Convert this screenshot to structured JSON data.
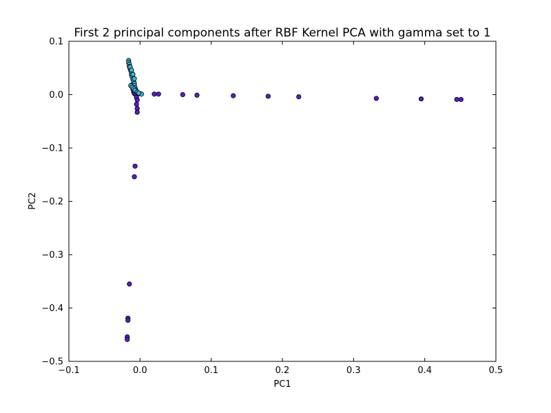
{
  "chart_data": {
    "type": "scatter",
    "title": "First 2 principal components after RBF Kernel PCA with gamma set to 1",
    "xlabel": "PC1",
    "ylabel": "PC2",
    "xlim": [
      -0.1,
      0.5
    ],
    "ylim": [
      -0.5,
      0.1
    ],
    "xticks": [
      -0.1,
      0.0,
      0.1,
      0.2,
      0.3,
      0.4,
      0.5
    ],
    "xtick_labels": [
      "−0.1",
      "0.0",
      "0.1",
      "0.2",
      "0.3",
      "0.4",
      "0.5"
    ],
    "yticks": [
      -0.5,
      -0.4,
      -0.3,
      -0.2,
      -0.1,
      0.0,
      0.1
    ],
    "ytick_labels": [
      "−0.5",
      "−0.4",
      "−0.3",
      "−0.2",
      "−0.1",
      "0.0",
      "0.1"
    ],
    "grid": false,
    "colors": {
      "purple": "#5a1ad0",
      "cyan": "#36b7d6",
      "outline": "#000000"
    },
    "series": [
      {
        "color": "#5a1ad0",
        "points": [
          [
            0.02,
            0.001
          ],
          [
            0.026,
            0.001
          ],
          [
            0.06,
            0.0
          ],
          [
            0.08,
            -0.001
          ],
          [
            0.131,
            -0.002
          ],
          [
            0.18,
            -0.003
          ],
          [
            0.223,
            -0.004
          ],
          [
            0.332,
            -0.007
          ],
          [
            0.395,
            -0.008
          ],
          [
            0.445,
            -0.009
          ],
          [
            0.451,
            -0.009
          ],
          [
            -0.012,
            0.018
          ],
          [
            -0.01,
            0.01
          ],
          [
            -0.009,
            0.005
          ],
          [
            -0.008,
            0.002
          ],
          [
            -0.006,
            0.0
          ],
          [
            -0.005,
            -0.005
          ],
          [
            -0.004,
            -0.01
          ],
          [
            -0.005,
            -0.018
          ],
          [
            -0.004,
            -0.026
          ],
          [
            -0.004,
            -0.033
          ],
          [
            -0.007,
            -0.134
          ],
          [
            -0.008,
            -0.154
          ],
          [
            -0.015,
            -0.355
          ],
          [
            -0.017,
            -0.419
          ],
          [
            -0.017,
            -0.423
          ],
          [
            -0.018,
            -0.454
          ],
          [
            -0.018,
            -0.459
          ]
        ]
      },
      {
        "color": "#36b7d6",
        "points": [
          [
            -0.016,
            0.064
          ],
          [
            -0.016,
            0.06
          ],
          [
            -0.015,
            0.057
          ],
          [
            -0.015,
            0.053
          ],
          [
            -0.014,
            0.049
          ],
          [
            -0.013,
            0.045
          ],
          [
            -0.012,
            0.041
          ],
          [
            -0.012,
            0.037
          ],
          [
            -0.011,
            0.033
          ],
          [
            -0.01,
            0.029
          ],
          [
            -0.009,
            0.025
          ],
          [
            -0.008,
            0.021
          ],
          [
            -0.008,
            0.017
          ],
          [
            -0.007,
            0.013
          ],
          [
            -0.006,
            0.009
          ],
          [
            -0.005,
            0.006
          ],
          [
            -0.003,
            0.003
          ],
          [
            -0.001,
            0.002
          ],
          [
            0.0,
            0.002
          ],
          [
            0.002,
            0.001
          ],
          [
            -0.013,
            0.017
          ],
          [
            -0.011,
            0.014
          ],
          [
            -0.009,
            0.011
          ],
          [
            -0.007,
            0.008
          ],
          [
            -0.004,
            0.005
          ],
          [
            -0.002,
            0.003
          ],
          [
            -0.014,
            0.052
          ],
          [
            -0.012,
            0.046
          ],
          [
            -0.01,
            0.038
          ],
          [
            -0.008,
            0.03
          ]
        ]
      }
    ]
  }
}
